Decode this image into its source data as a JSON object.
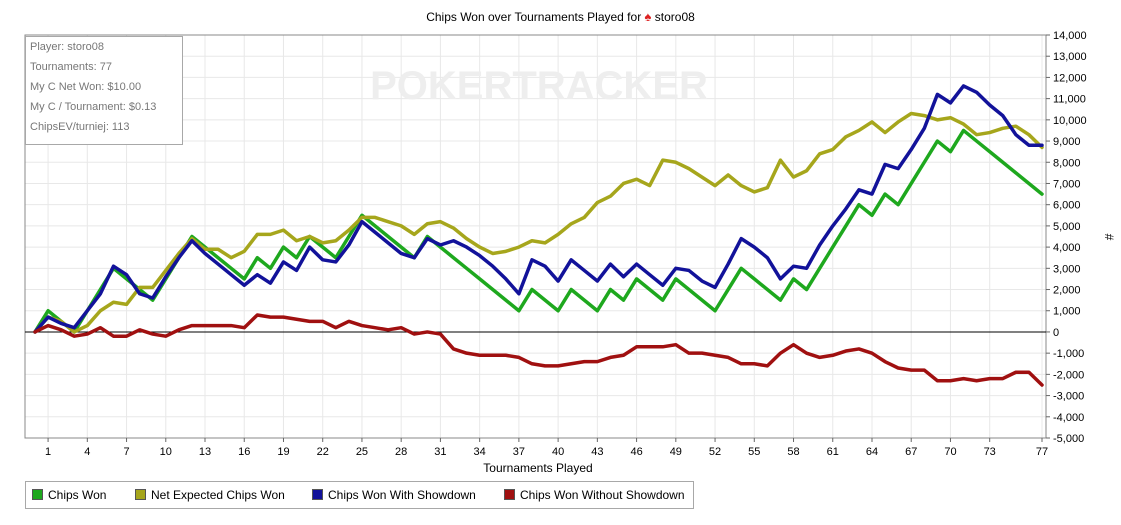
{
  "chart_data": {
    "type": "line",
    "title": "Chips Won over Tournaments Played for",
    "player_name": "storo08",
    "watermark": "POKERTRACKER",
    "xlabel": "Tournaments Played",
    "ylabel": "#",
    "xlim": [
      0,
      77
    ],
    "ylim": [
      -5000,
      14000
    ],
    "x_ticks": [
      1,
      4,
      7,
      10,
      13,
      16,
      19,
      22,
      25,
      28,
      31,
      34,
      37,
      40,
      43,
      46,
      49,
      52,
      55,
      58,
      61,
      64,
      67,
      70,
      73,
      77
    ],
    "y_ticks": [
      -5000,
      -4000,
      -3000,
      -2000,
      -1000,
      0,
      1000,
      2000,
      3000,
      4000,
      5000,
      6000,
      7000,
      8000,
      9000,
      10000,
      11000,
      12000,
      13000,
      14000
    ],
    "grid": true,
    "legend_position": "bottom",
    "series": [
      {
        "name": "Chips Won",
        "color": "#1ea81e",
        "values": [
          0,
          1000,
          500,
          0,
          1000,
          2000,
          3000,
          2500,
          2000,
          1500,
          2500,
          3500,
          4500,
          4000,
          3500,
          3000,
          2500,
          3500,
          3000,
          4000,
          3500,
          4500,
          4000,
          3500,
          4500,
          5500,
          5000,
          4500,
          4000,
          3500,
          4500,
          4000,
          3500,
          3000,
          2500,
          2000,
          1500,
          1000,
          2000,
          1500,
          1000,
          2000,
          1500,
          1000,
          2000,
          1500,
          2500,
          2000,
          1500,
          2500,
          2000,
          1500,
          1000,
          2000,
          3000,
          2500,
          2000,
          1500,
          2500,
          2000,
          3000,
          4000,
          5000,
          6000,
          5500,
          6500,
          6000,
          7000,
          8000,
          9000,
          8500,
          9500,
          9000,
          8500,
          8000,
          7500,
          7000,
          6500
        ]
      },
      {
        "name": "Net Expected Chips Won",
        "color": "#a6a61c",
        "values": [
          0,
          700,
          500,
          0,
          300,
          1000,
          1400,
          1300,
          2100,
          2100,
          2900,
          3700,
          4400,
          3900,
          3900,
          3500,
          3800,
          4600,
          4600,
          4800,
          4300,
          4500,
          4200,
          4300,
          4800,
          5400,
          5400,
          5200,
          5000,
          4600,
          5100,
          5200,
          4900,
          4400,
          4000,
          3700,
          3800,
          4000,
          4300,
          4200,
          4600,
          5100,
          5400,
          6100,
          6400,
          7000,
          7200,
          6900,
          8100,
          8000,
          7700,
          7300,
          6900,
          7400,
          6900,
          6600,
          6800,
          8100,
          7300,
          7600,
          8400,
          8600,
          9200,
          9500,
          9900,
          9400,
          9900,
          10300,
          10200,
          10000,
          10100,
          9800,
          9300,
          9400,
          9600,
          9700,
          9300,
          8700
        ]
      },
      {
        "name": "Chips Won With Showdown",
        "color": "#12129a",
        "values": [
          0,
          700,
          400,
          200,
          1000,
          1800,
          3100,
          2700,
          1800,
          1600,
          2600,
          3500,
          4300,
          3700,
          3200,
          2700,
          2200,
          2700,
          2300,
          3300,
          2900,
          4000,
          3400,
          3300,
          4100,
          5200,
          4700,
          4200,
          3700,
          3500,
          4400,
          4100,
          4300,
          4000,
          3600,
          3100,
          2500,
          1800,
          3400,
          3100,
          2400,
          3400,
          2900,
          2400,
          3200,
          2600,
          3200,
          2700,
          2200,
          3000,
          2900,
          2400,
          2100,
          3200,
          4400,
          4000,
          3500,
          2500,
          3100,
          3000,
          4100,
          5000,
          5800,
          6700,
          6500,
          7900,
          7700,
          8600,
          9600,
          11200,
          10800,
          11600,
          11300,
          10700,
          10200,
          9300,
          8800,
          8800
        ]
      },
      {
        "name": "Chips Won Without Showdown",
        "color": "#a01010",
        "values": [
          0,
          300,
          100,
          -200,
          -100,
          200,
          -200,
          -200,
          100,
          -100,
          -200,
          100,
          300,
          300,
          300,
          300,
          200,
          800,
          700,
          700,
          600,
          500,
          500,
          200,
          500,
          300,
          200,
          100,
          200,
          -100,
          0,
          -100,
          -800,
          -1000,
          -1100,
          -1100,
          -1100,
          -1200,
          -1500,
          -1600,
          -1600,
          -1500,
          -1400,
          -1400,
          -1200,
          -1100,
          -700,
          -700,
          -700,
          -600,
          -1000,
          -1000,
          -1100,
          -1200,
          -1500,
          -1500,
          -1600,
          -1000,
          -600,
          -1000,
          -1200,
          -1100,
          -900,
          -800,
          -1000,
          -1400,
          -1700,
          -1800,
          -1800,
          -2300,
          -2300,
          -2200,
          -2300,
          -2200,
          -2200,
          -1900,
          -1900,
          -2500
        ]
      }
    ]
  },
  "info_box": {
    "player": "Player: storo08",
    "tournaments": "Tournaments: 77",
    "net_won": "My C Net Won: $10.00",
    "per_tournament": "My C / Tournament: $0.13",
    "chips_ev": "ChipsEV/turniej: 113"
  },
  "legend": [
    "Chips Won",
    "Net Expected Chips Won",
    "Chips Won With Showdown",
    "Chips Won Without Showdown"
  ]
}
